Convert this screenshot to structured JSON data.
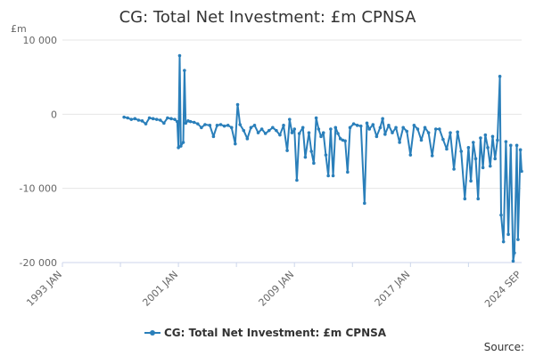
{
  "chart_data": {
    "type": "line",
    "title": "CG: Total Net Investment: £m CPNSA",
    "ylabel_unit": "£m",
    "ylim": [
      -20000,
      10000
    ],
    "y_ticks": [
      10000,
      0,
      -10000,
      -20000
    ],
    "y_tick_labels": [
      "10 000",
      "0",
      "-10 000",
      "-20 000"
    ],
    "x_range": [
      "1993-01",
      "2024-09"
    ],
    "x_ticks": [
      "1993-01",
      "2001-01",
      "2009-01",
      "2017-01",
      "2024-09"
    ],
    "x_tick_labels": [
      "1993 JAN",
      "2001 JAN",
      "2009 JAN",
      "2017 JAN",
      "2024 SEP"
    ],
    "grid": true,
    "legend_position": "bottom",
    "series": [
      {
        "name": "CG: Total Net Investment: £m CPNSA",
        "color": "#2a7fba",
        "points": [
          [
            "1997-04",
            -400
          ],
          [
            "1997-07",
            -500
          ],
          [
            "1997-10",
            -700
          ],
          [
            "1998-01",
            -600
          ],
          [
            "1998-04",
            -800
          ],
          [
            "1998-07",
            -900
          ],
          [
            "1998-10",
            -1300
          ],
          [
            "1999-01",
            -500
          ],
          [
            "1999-04",
            -600
          ],
          [
            "1999-07",
            -700
          ],
          [
            "1999-10",
            -800
          ],
          [
            "2000-01",
            -1200
          ],
          [
            "2000-04",
            -500
          ],
          [
            "2000-07",
            -600
          ],
          [
            "2000-10",
            -700
          ],
          [
            "2000-12",
            -1000
          ],
          [
            "2001-01",
            -4500
          ],
          [
            "2001-02",
            7900
          ],
          [
            "2001-03",
            -4300
          ],
          [
            "2001-05",
            -3800
          ],
          [
            "2001-06",
            5900
          ],
          [
            "2001-07",
            -1200
          ],
          [
            "2001-09",
            -900
          ],
          [
            "2001-11",
            -1000
          ],
          [
            "2002-02",
            -1100
          ],
          [
            "2002-05",
            -1300
          ],
          [
            "2002-08",
            -1800
          ],
          [
            "2002-11",
            -1400
          ],
          [
            "2003-03",
            -1500
          ],
          [
            "2003-06",
            -3000
          ],
          [
            "2003-09",
            -1500
          ],
          [
            "2003-12",
            -1400
          ],
          [
            "2004-03",
            -1600
          ],
          [
            "2004-06",
            -1500
          ],
          [
            "2004-09",
            -1800
          ],
          [
            "2004-12",
            -4000
          ],
          [
            "2005-02",
            1300
          ],
          [
            "2005-04",
            -1400
          ],
          [
            "2005-07",
            -2200
          ],
          [
            "2005-10",
            -3300
          ],
          [
            "2006-01",
            -1800
          ],
          [
            "2006-04",
            -1500
          ],
          [
            "2006-07",
            -2500
          ],
          [
            "2006-10",
            -2000
          ],
          [
            "2007-01",
            -2600
          ],
          [
            "2007-04",
            -2200
          ],
          [
            "2007-07",
            -1800
          ],
          [
            "2007-10",
            -2200
          ],
          [
            "2008-01",
            -2800
          ],
          [
            "2008-04",
            -1500
          ],
          [
            "2008-07",
            -4900
          ],
          [
            "2008-09",
            -700
          ],
          [
            "2008-11",
            -2500
          ],
          [
            "2009-01",
            -2000
          ],
          [
            "2009-03",
            -8900
          ],
          [
            "2009-05",
            -2600
          ],
          [
            "2009-08",
            -1800
          ],
          [
            "2009-10",
            -5800
          ],
          [
            "2010-01",
            -2500
          ],
          [
            "2010-03",
            -5000
          ],
          [
            "2010-05",
            -6600
          ],
          [
            "2010-07",
            -500
          ],
          [
            "2010-09",
            -2000
          ],
          [
            "2010-11",
            -3000
          ],
          [
            "2011-01",
            -2500
          ],
          [
            "2011-03",
            -5500
          ],
          [
            "2011-05",
            -8300
          ],
          [
            "2011-07",
            -2000
          ],
          [
            "2011-09",
            -8300
          ],
          [
            "2011-11",
            -1800
          ],
          [
            "2012-01",
            -2600
          ],
          [
            "2012-03",
            -3300
          ],
          [
            "2012-05",
            -3500
          ],
          [
            "2012-07",
            -3600
          ],
          [
            "2012-09",
            -7800
          ],
          [
            "2012-11",
            -1800
          ],
          [
            "2013-02",
            -1300
          ],
          [
            "2013-05",
            -1500
          ],
          [
            "2013-08",
            -1600
          ],
          [
            "2013-11",
            -12000
          ],
          [
            "2014-01",
            -1200
          ],
          [
            "2014-03",
            -2000
          ],
          [
            "2014-06",
            -1400
          ],
          [
            "2014-09",
            -3000
          ],
          [
            "2014-12",
            -1800
          ],
          [
            "2015-02",
            -600
          ],
          [
            "2015-04",
            -2700
          ],
          [
            "2015-07",
            -1500
          ],
          [
            "2015-10",
            -2500
          ],
          [
            "2016-01",
            -1800
          ],
          [
            "2016-04",
            -3800
          ],
          [
            "2016-07",
            -1800
          ],
          [
            "2016-10",
            -2300
          ],
          [
            "2017-01",
            -5500
          ],
          [
            "2017-04",
            -1500
          ],
          [
            "2017-07",
            -2000
          ],
          [
            "2017-10",
            -3500
          ],
          [
            "2018-01",
            -1800
          ],
          [
            "2018-04",
            -2500
          ],
          [
            "2018-07",
            -5600
          ],
          [
            "2018-10",
            -2000
          ],
          [
            "2019-01",
            -2000
          ],
          [
            "2019-04",
            -3400
          ],
          [
            "2019-07",
            -4700
          ],
          [
            "2019-10",
            -2500
          ],
          [
            "2020-01",
            -7400
          ],
          [
            "2020-04",
            -2400
          ],
          [
            "2020-07",
            -5000
          ],
          [
            "2020-10",
            -11400
          ],
          [
            "2021-01",
            -4500
          ],
          [
            "2021-03",
            -9000
          ],
          [
            "2021-05",
            -3800
          ],
          [
            "2021-07",
            -6000
          ],
          [
            "2021-09",
            -11400
          ],
          [
            "2021-11",
            -3200
          ],
          [
            "2022-01",
            -7200
          ],
          [
            "2022-03",
            -2800
          ],
          [
            "2022-05",
            -4500
          ],
          [
            "2022-07",
            -7000
          ],
          [
            "2022-09",
            -3000
          ],
          [
            "2022-11",
            -6000
          ],
          [
            "2023-01",
            -3500
          ],
          [
            "2023-03",
            5100
          ],
          [
            "2023-04",
            -13600
          ],
          [
            "2023-06",
            -17200
          ],
          [
            "2023-08",
            -3700
          ],
          [
            "2023-10",
            -16200
          ],
          [
            "2023-12",
            -4200
          ],
          [
            "2024-02",
            -19800
          ],
          [
            "2024-03",
            -18700
          ],
          [
            "2024-05",
            -4200
          ],
          [
            "2024-06",
            -16900
          ],
          [
            "2024-08",
            -4800
          ],
          [
            "2024-09",
            -7700
          ]
        ]
      }
    ]
  },
  "legend": {
    "label": "CG: Total Net Investment: £m CPNSA"
  },
  "source": {
    "label": "Source:"
  }
}
